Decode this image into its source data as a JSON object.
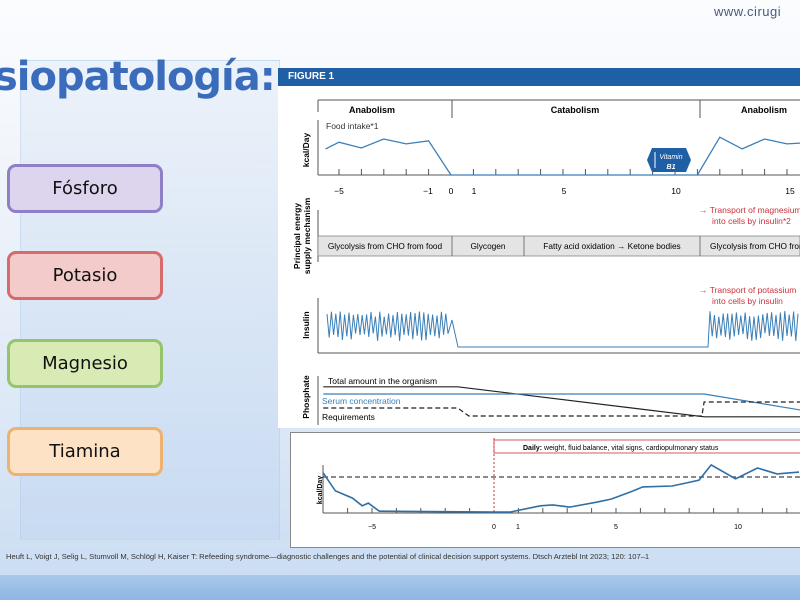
{
  "header": {
    "url": "www.cirugi",
    "title": "siopatología:"
  },
  "items": [
    {
      "label": "Fósforo",
      "fill": "#ddd4ee",
      "border": "#8e80c6"
    },
    {
      "label": "Potasio",
      "fill": "#f4cbcb",
      "border": "#d76a6a"
    },
    {
      "label": "Magnesio",
      "fill": "#d8ebb5",
      "border": "#94c46c"
    },
    {
      "label": "Tiamina",
      "fill": "#fde2c6",
      "border": "#eeb170"
    }
  ],
  "figure": {
    "label": "FIGURE 1",
    "phases": [
      "Anabolism",
      "Catabolism",
      "Anabolism"
    ],
    "food_label": "Food intake*1",
    "kcal_label": "kcal/Day",
    "vitamin": "Vitamin",
    "vitamin_sub": "B1",
    "energy_label_1": "Principal energy",
    "energy_label_2": "supply mechanism",
    "mg_note_1": "→ Transport of magnesium",
    "mg_note_2": "into cells by insulin*2",
    "energy_boxes": [
      "Glycolysis from CHO from food",
      "Glycogen",
      "Fatty acid oxidation → Ketone bodies",
      "Glycolysis from CHO from food"
    ],
    "k_note_1": "→ Transport of potassium",
    "k_note_2": "into cells by insulin",
    "insulin_label": "Insulin",
    "phosphate_label": "Phosphate",
    "phos_total": "Total amount in the organism",
    "phos_serum": "Serum concentration",
    "phos_req": "Requirements",
    "ticks": [
      "−5",
      "−1",
      "0",
      "1",
      "5",
      "10",
      "15"
    ],
    "daily_bold": "Daily:",
    "daily_text": " weight, fluid balance, vital signs, cardiopulmonary status",
    "ticks2": [
      "−5",
      "0",
      "1",
      "5",
      "10"
    ],
    "accent": "#3a7fb8",
    "red": "#c8323a"
  },
  "chart_data": [
    {
      "type": "line",
      "x": [
        -5.6,
        -5,
        -4,
        -3,
        -2,
        -1,
        0,
        11,
        12,
        13,
        14,
        15,
        15.6
      ],
      "y": [
        0.58,
        0.73,
        0.6,
        0.8,
        0.69,
        0.76,
        0,
        0,
        0.84,
        0.58,
        0.8,
        0.69,
        0.71
      ],
      "xlabel": "",
      "ylabel": "kcal/Day"
    },
    {
      "type": "line",
      "series": [
        {
          "name": "Total amount in the organism",
          "x": [
            -5.7,
            0.3,
            11.3,
            15.6
          ],
          "y": [
            0.83,
            0.83,
            0.08,
            0.08
          ]
        },
        {
          "name": "Serum concentration",
          "x": [
            -5.7,
            11.3,
            15.6
          ],
          "y": [
            0.65,
            0.65,
            0.25
          ]
        },
        {
          "name": "Requirements",
          "x": [
            -5.7,
            0.3,
            0.8,
            11.2,
            11.3,
            15.6
          ],
          "y": [
            0.3,
            0.3,
            0.1,
            0.1,
            0.45,
            0.45
          ]
        }
      ],
      "ylabel": "Phosphate"
    },
    {
      "type": "line",
      "x": [
        -7,
        -6.5,
        -5.8,
        -5.4,
        -5.15,
        -4.7,
        0,
        0.65,
        1.9,
        2.4,
        3.1,
        4.2,
        4.8,
        5.6,
        6.1,
        7.3,
        7.9,
        8.4,
        8.9,
        9.9,
        10.8,
        11.6,
        12.5
      ],
      "y": [
        0.89,
        0.49,
        0.33,
        0.16,
        0.22,
        0.04,
        0.02,
        0.02,
        0.16,
        0.18,
        0.13,
        0.24,
        0.31,
        0.47,
        0.58,
        0.6,
        0.67,
        0.73,
        1.07,
        0.76,
        1.0,
        0.87,
        0.91
      ],
      "target": 0.8,
      "ylabel": "kcal/Day"
    }
  ],
  "citation": "Heuft L, Voigt J, Selig L, Stumvoll M, Schlögl H, Kaiser T: Refeeding syndrome—diagnostic challenges and the potential of clinical decision support systems. Dtsch Arztebl Int 2023; 120: 107–1"
}
